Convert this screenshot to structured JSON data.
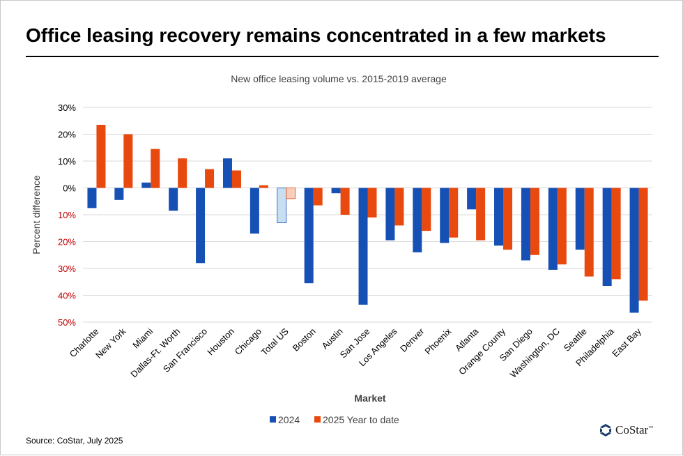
{
  "title": "Office leasing recovery remains concentrated in a few markets",
  "source": "Source: CoStar, July 2025",
  "logo": {
    "text": "CoStar",
    "tm": "™"
  },
  "colors": {
    "series_2024": "#1650B4",
    "series_2025": "#E8490F",
    "total_2024": "#C8DEF1",
    "total_2025": "#F8CEB9",
    "negative_tick": "#C00000",
    "positive_tick": "#000000"
  },
  "chart_data": {
    "type": "bar",
    "title": "New office leasing volume vs. 2015-2019 average",
    "xlabel": "Market",
    "ylabel": "Percent difference",
    "ylim": [
      -50,
      30
    ],
    "yticks": [
      30,
      20,
      10,
      0,
      -10,
      -20,
      -30,
      -40,
      -50
    ],
    "ytick_labels": [
      "30%",
      "20%",
      "10%",
      "0%",
      "10%",
      "20%",
      "30%",
      "40%",
      "50%"
    ],
    "grid": true,
    "legend_position": "bottom-center",
    "categories": [
      "Charlotte",
      "New York",
      "Miami",
      "Dallas-Ft. Worth",
      "San Francisco",
      "Houston",
      "Chicago",
      "Total US",
      "Boston",
      "Austin",
      "San Jose",
      "Los Angeles",
      "Denver",
      "Phoenix",
      "Atlanta",
      "Orange County",
      "San Diego",
      "Washington, DC",
      "Seattle",
      "Philadelphia",
      "East Bay"
    ],
    "highlight_category": "Total US",
    "series": [
      {
        "name": "2024",
        "values": [
          -7.5,
          -4.5,
          2,
          -8.5,
          -28,
          11,
          -17,
          -13,
          -35.5,
          -2,
          -43.5,
          -19.5,
          -24,
          -20.5,
          -8,
          -21.5,
          -27,
          -30.5,
          -23,
          -36.5,
          -46.5
        ]
      },
      {
        "name": "2025 Year to date",
        "values": [
          23.5,
          20,
          14.5,
          11,
          7,
          6.5,
          1,
          -4,
          -6.5,
          -10,
          -11,
          -14,
          -16,
          -18.5,
          -19.5,
          -23,
          -25,
          -28.5,
          -33,
          -34,
          -42
        ]
      }
    ]
  }
}
